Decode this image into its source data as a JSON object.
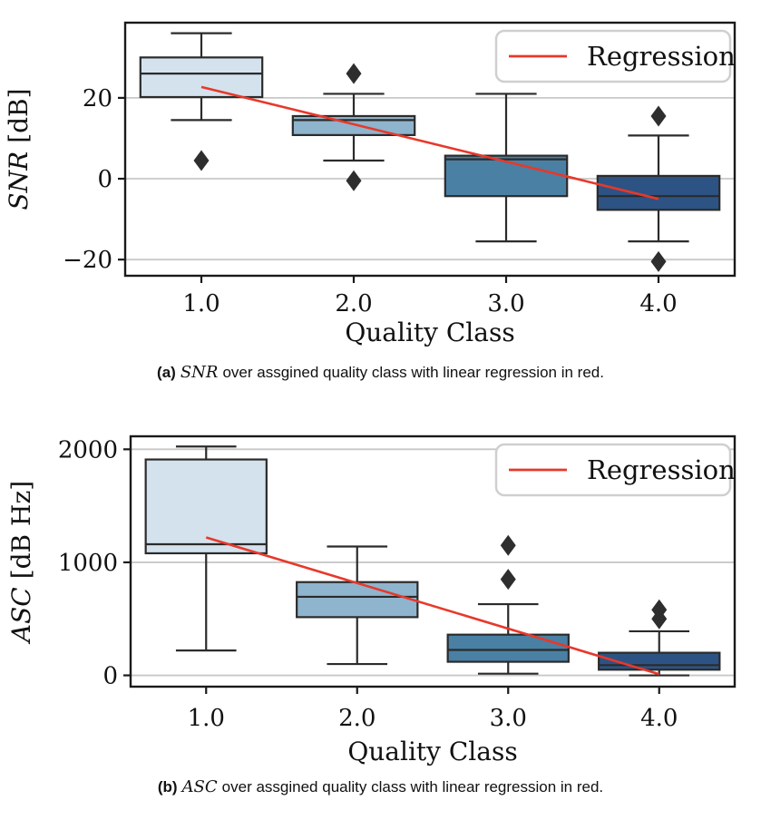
{
  "figure": {
    "captions": [
      {
        "label": "(a)",
        "math": "SNR",
        "text": "over assgined quality class with linear regression in red."
      },
      {
        "label": "(b)",
        "math": "ASC",
        "text": "over assgined quality class with linear regression in red."
      }
    ]
  },
  "colors": {
    "box_palette": [
      "#d4e2ee",
      "#8fb4cd",
      "#4a80a4",
      "#2d5384"
    ],
    "box_edge": "#2b2b2b",
    "whisker": "#2b2b2b",
    "flier": "#2e2e2e",
    "gridline": "#c8c8c8",
    "spine": "#1a1a1a",
    "regression_red": "#e8382a",
    "legend_border": "#cfcfcf",
    "legend_bg": "#ffffff",
    "background": "#ffffff"
  },
  "chart_data": [
    {
      "type": "box",
      "title": "",
      "xlabel": "Quality Class",
      "ylabel_math": "SNR",
      "ylabel_unit": "[dB]",
      "categories": [
        "1.0",
        "2.0",
        "3.0",
        "4.0"
      ],
      "yticks": [
        -20,
        0,
        20
      ],
      "ylim": [
        -24,
        38.6
      ],
      "grid": "horizontal",
      "legend": {
        "label": "Regression",
        "position": "upper right"
      },
      "boxes": [
        {
          "category": "1.0",
          "whisker_low": 14.5,
          "q1": 20.2,
          "median": 26,
          "q3": 30,
          "whisker_high": 36,
          "outliers": [
            4.5
          ]
        },
        {
          "category": "2.0",
          "whisker_low": 4.5,
          "q1": 10.8,
          "median": 14.5,
          "q3": 15.5,
          "whisker_high": 21,
          "outliers": [
            26,
            -0.5
          ]
        },
        {
          "category": "3.0",
          "whisker_low": -15.5,
          "q1": -4.3,
          "median": 4.8,
          "q3": 5.7,
          "whisker_high": 21,
          "outliers": []
        },
        {
          "category": "4.0",
          "whisker_low": -15.5,
          "q1": -7.7,
          "median": -4.3,
          "q3": 0.7,
          "whisker_high": 10.7,
          "outliers": [
            15.5,
            -20.5
          ]
        }
      ],
      "regression": {
        "x1": 1,
        "y1": 22.7,
        "x2": 4,
        "y2": -5
      }
    },
    {
      "type": "box",
      "title": "",
      "xlabel": "Quality Class",
      "ylabel_math": "ASC",
      "ylabel_unit": "[dB Hz]",
      "categories": [
        "1.0",
        "2.0",
        "3.0",
        "4.0"
      ],
      "yticks": [
        0,
        1000,
        2000
      ],
      "ylim": [
        -100,
        2115
      ],
      "grid": "horizontal",
      "legend": {
        "label": "Regression",
        "position": "upper right"
      },
      "boxes": [
        {
          "category": "1.0",
          "whisker_low": 220,
          "q1": 1080,
          "median": 1160,
          "q3": 1910,
          "whisker_high": 2025,
          "outliers": []
        },
        {
          "category": "2.0",
          "whisker_low": 100,
          "q1": 515,
          "median": 695,
          "q3": 825,
          "whisker_high": 1140,
          "outliers": []
        },
        {
          "category": "3.0",
          "whisker_low": 15,
          "q1": 120,
          "median": 225,
          "q3": 360,
          "whisker_high": 630,
          "outliers": [
            1150,
            850
          ]
        },
        {
          "category": "4.0",
          "whisker_low": 0,
          "q1": 50,
          "median": 90,
          "q3": 200,
          "whisker_high": 390,
          "outliers": [
            580,
            500
          ]
        }
      ],
      "regression": {
        "x1": 1,
        "y1": 1220,
        "x2": 4,
        "y2": 10
      }
    }
  ]
}
